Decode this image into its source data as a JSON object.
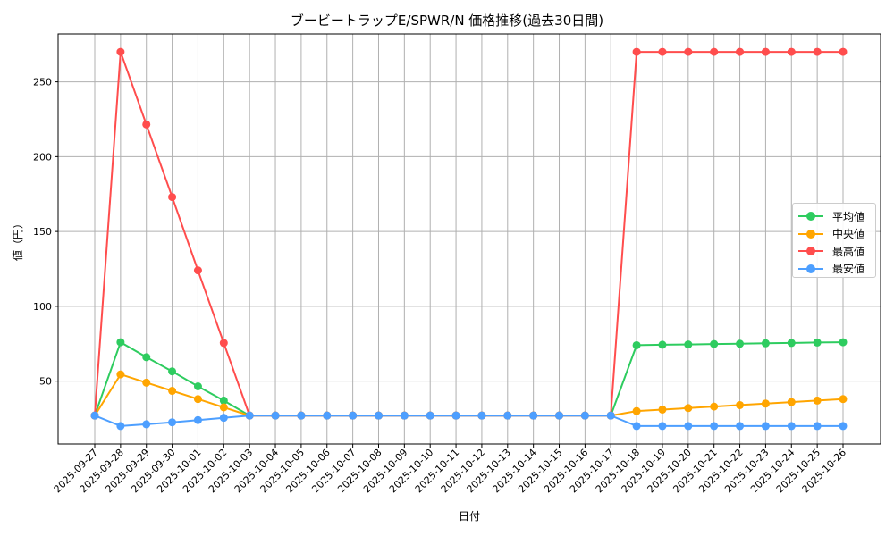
{
  "chart_data": {
    "type": "line",
    "title": "ブービートラップE/SPWR/N 価格推移(過去30日間)",
    "xlabel": "日付",
    "ylabel": "値（円）",
    "ylim": [
      8,
      282
    ],
    "yticks": [
      50,
      100,
      150,
      200,
      250
    ],
    "grid": true,
    "legend_position": "center right",
    "x": [
      "2025-09-27",
      "2025-09-28",
      "2025-09-29",
      "2025-09-30",
      "2025-10-01",
      "2025-10-02",
      "2025-10-03",
      "2025-10-04",
      "2025-10-05",
      "2025-10-06",
      "2025-10-07",
      "2025-10-08",
      "2025-10-09",
      "2025-10-10",
      "2025-10-11",
      "2025-10-12",
      "2025-10-13",
      "2025-10-14",
      "2025-10-15",
      "2025-10-16",
      "2025-10-17",
      "2025-10-18",
      "2025-10-19",
      "2025-10-20",
      "2025-10-21",
      "2025-10-22",
      "2025-10-23",
      "2025-10-24",
      "2025-10-25",
      "2025-10-26"
    ],
    "series": [
      {
        "name": "平均値",
        "color": "#2ecc5f",
        "values": [
          27,
          76,
          66,
          56.5,
          46.5,
          37,
          27,
          27,
          27,
          27,
          27,
          27,
          27,
          27,
          27,
          27,
          27,
          27,
          27,
          27,
          27,
          74,
          74.3,
          74.5,
          74.8,
          75,
          75.3,
          75.5,
          75.8,
          76
        ]
      },
      {
        "name": "中央値",
        "color": "#ffa500",
        "values": [
          27,
          54.5,
          49,
          43.5,
          38,
          32.5,
          27,
          27,
          27,
          27,
          27,
          27,
          27,
          27,
          27,
          27,
          27,
          27,
          27,
          27,
          27,
          30,
          31,
          32,
          33,
          34,
          35,
          36,
          37,
          38
        ]
      },
      {
        "name": "最高値",
        "color": "#ff4d4d",
        "values": [
          27,
          270,
          221.5,
          173,
          124,
          75.5,
          27,
          27,
          27,
          27,
          27,
          27,
          27,
          27,
          27,
          27,
          27,
          27,
          27,
          27,
          27,
          270,
          270,
          270,
          270,
          270,
          270,
          270,
          270,
          270
        ]
      },
      {
        "name": "最安値",
        "color": "#4d9fff",
        "values": [
          27,
          20,
          21.2,
          22.5,
          24,
          25.5,
          27,
          27,
          27,
          27,
          27,
          27,
          27,
          27,
          27,
          27,
          27,
          27,
          27,
          27,
          27,
          20,
          20,
          20,
          20,
          20,
          20,
          20,
          20,
          20
        ]
      }
    ]
  }
}
